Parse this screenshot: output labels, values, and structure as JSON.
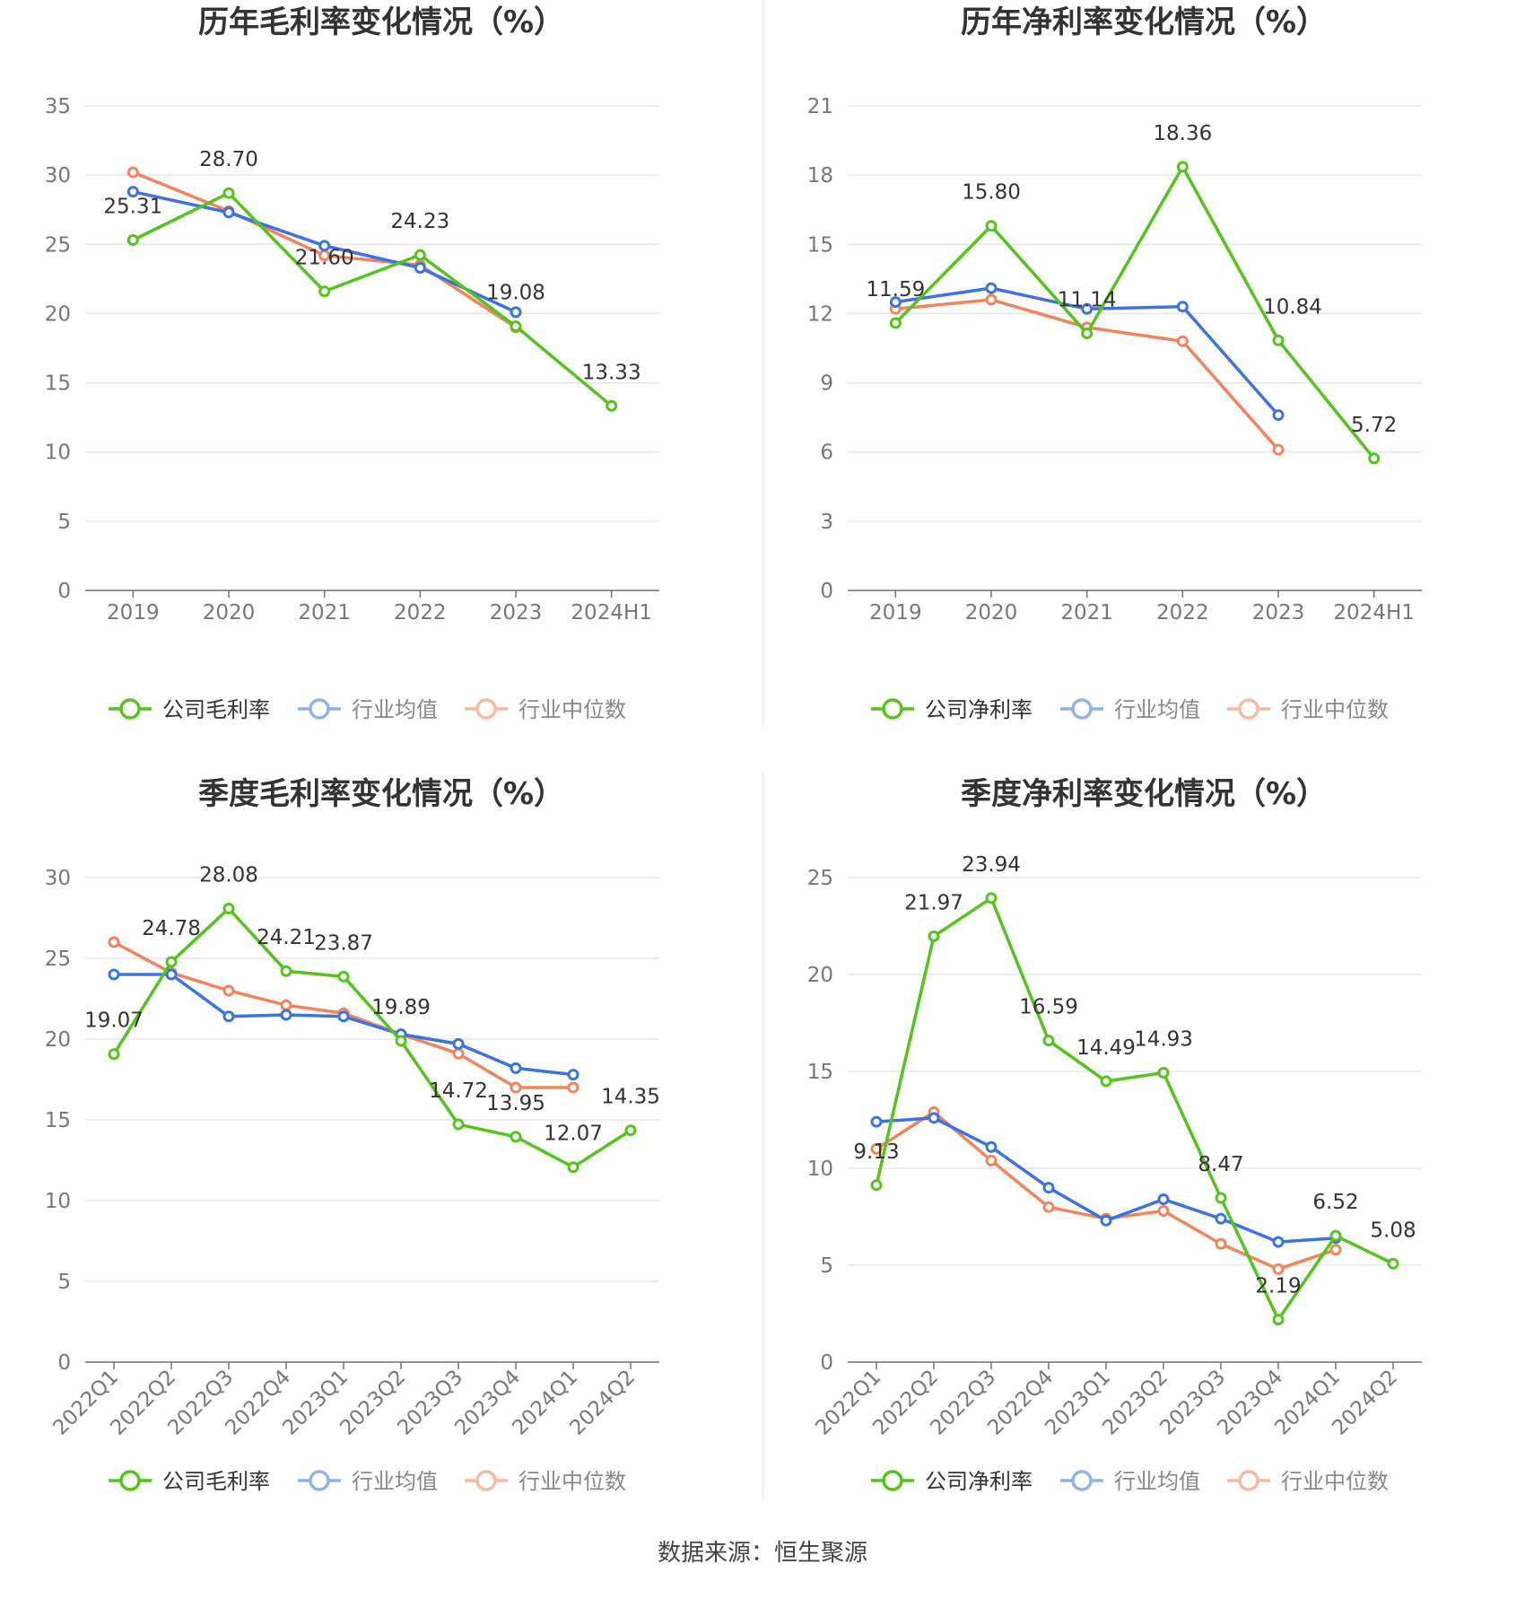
{
  "source": "数据来源：恒生聚源",
  "legend_colors": {
    "company": "#52c41a",
    "avg": "#3b73e0",
    "median": "#f2845c"
  },
  "chart_data": [
    {
      "id": "annual-gross",
      "type": "line",
      "title": "历年毛利率变化情况（%）",
      "categories": [
        "2019",
        "2020",
        "2021",
        "2022",
        "2023",
        "2024H1"
      ],
      "ylim": [
        0,
        35
      ],
      "yticks": [
        0,
        5,
        10,
        15,
        20,
        25,
        30,
        35
      ],
      "rotate_x": false,
      "series": [
        {
          "name": "公司毛利率",
          "role": "company",
          "values": [
            25.31,
            28.7,
            21.6,
            24.23,
            19.08,
            13.33
          ],
          "labels": [
            "25.31",
            "28.70",
            "21.60",
            "24.23",
            "19.08",
            "13.33"
          ]
        },
        {
          "name": "行业均值",
          "role": "avg",
          "values": [
            28.8,
            27.3,
            24.9,
            23.3,
            20.1,
            null
          ]
        },
        {
          "name": "行业中位数",
          "role": "median",
          "values": [
            30.2,
            27.4,
            24.2,
            23.5,
            19.0,
            null
          ]
        }
      ]
    },
    {
      "id": "annual-net",
      "type": "line",
      "title": "历年净利率变化情况（%）",
      "categories": [
        "2019",
        "2020",
        "2021",
        "2022",
        "2023",
        "2024H1"
      ],
      "ylim": [
        0,
        21
      ],
      "yticks": [
        0,
        3,
        6,
        9,
        12,
        15,
        18,
        21
      ],
      "rotate_x": false,
      "series": [
        {
          "name": "公司净利率",
          "role": "company",
          "values": [
            11.59,
            15.8,
            11.14,
            18.36,
            10.84,
            5.72
          ],
          "labels": [
            "11.59",
            "15.80",
            "11.14",
            "18.36",
            "10.84",
            "5.72"
          ]
        },
        {
          "name": "行业均值",
          "role": "avg",
          "values": [
            12.5,
            13.1,
            12.2,
            12.3,
            7.6,
            null
          ]
        },
        {
          "name": "行业中位数",
          "role": "median",
          "values": [
            12.2,
            12.6,
            11.4,
            10.8,
            6.1,
            null
          ]
        }
      ]
    },
    {
      "id": "quarterly-gross",
      "type": "line",
      "title": "季度毛利率变化情况（%）",
      "categories": [
        "2022Q1",
        "2022Q2",
        "2022Q3",
        "2022Q4",
        "2023Q1",
        "2023Q2",
        "2023Q3",
        "2023Q4",
        "2024Q1",
        "2024Q2"
      ],
      "ylim": [
        0,
        30
      ],
      "yticks": [
        0,
        5,
        10,
        15,
        20,
        25,
        30
      ],
      "rotate_x": true,
      "series": [
        {
          "name": "公司毛利率",
          "role": "company",
          "values": [
            19.07,
            24.78,
            28.08,
            24.21,
            23.87,
            19.89,
            14.72,
            13.95,
            12.07,
            14.35
          ],
          "labels": [
            "19.07",
            "24.78",
            "28.08",
            "24.21",
            "23.87",
            "19.89",
            "14.72",
            "13.95",
            "12.07",
            "14.35"
          ]
        },
        {
          "name": "行业均值",
          "role": "avg",
          "values": [
            24.0,
            24.0,
            21.4,
            21.5,
            21.4,
            20.3,
            19.7,
            18.2,
            17.8,
            null
          ]
        },
        {
          "name": "行业中位数",
          "role": "median",
          "values": [
            26.0,
            24.1,
            23.0,
            22.1,
            21.6,
            20.3,
            19.1,
            17.0,
            17.0,
            null
          ]
        }
      ]
    },
    {
      "id": "quarterly-net",
      "type": "line",
      "title": "季度净利率变化情况（%）",
      "categories": [
        "2022Q1",
        "2022Q2",
        "2022Q3",
        "2022Q4",
        "2023Q1",
        "2023Q2",
        "2023Q3",
        "2023Q4",
        "2024Q1",
        "2024Q2"
      ],
      "ylim": [
        0,
        25
      ],
      "yticks": [
        0,
        5,
        10,
        15,
        20,
        25
      ],
      "rotate_x": true,
      "series": [
        {
          "name": "公司净利率",
          "role": "company",
          "values": [
            9.13,
            21.97,
            23.94,
            16.59,
            14.49,
            14.93,
            8.47,
            2.19,
            6.52,
            5.08
          ],
          "labels": [
            "9.13",
            "21.97",
            "23.94",
            "16.59",
            "14.49",
            "14.93",
            "8.47",
            "2.19",
            "6.52",
            "5.08"
          ]
        },
        {
          "name": "行业均值",
          "role": "avg",
          "values": [
            12.4,
            12.6,
            11.1,
            9.0,
            7.3,
            8.4,
            7.4,
            6.2,
            6.4,
            null
          ]
        },
        {
          "name": "行业中位数",
          "role": "median",
          "values": [
            11.0,
            12.9,
            10.4,
            8.0,
            7.4,
            7.8,
            6.1,
            4.8,
            5.8,
            null
          ]
        }
      ]
    }
  ]
}
